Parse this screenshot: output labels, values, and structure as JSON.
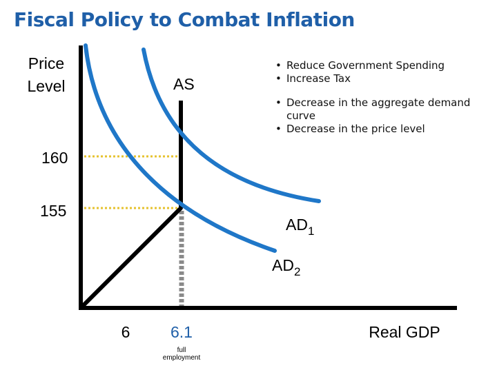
{
  "slide": {
    "title": "Fiscal Policy to Combat Inflation"
  },
  "bullets": [
    "Reduce Government Spending",
    "Increase Tax",
    "Decrease in the aggregate demand curve",
    "Decrease in the price level"
  ],
  "diagram": {
    "y_axis_label_line1": "Price",
    "y_axis_label_line2": "Level",
    "x_axis_label": "Real GDP",
    "as_label": "AS",
    "ad1_label": "AD",
    "ad1_sub": "1",
    "ad2_label": "AD",
    "ad2_sub": "2",
    "price_high": "160",
    "price_low": "155",
    "gdp_low": "6",
    "gdp_full": "6.1",
    "full_employment_line1": "full",
    "full_employment_line2": "employment",
    "colors": {
      "title": "#1f5fa8",
      "ad_curves": "#1f77c8",
      "guide_160": "#e6c22e",
      "guide_155": "#e6c22e",
      "vertical_guide": "#8a8a8a",
      "axes": "#000000"
    }
  }
}
